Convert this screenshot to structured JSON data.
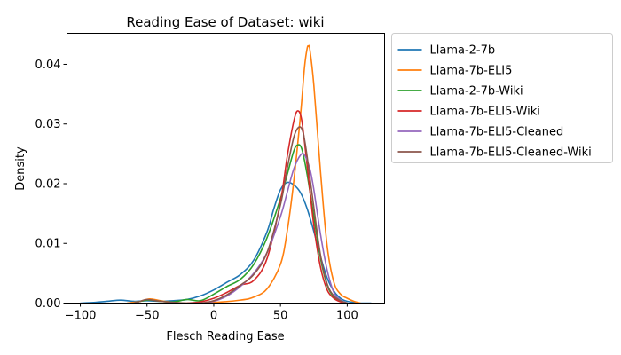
{
  "chart_data": {
    "type": "line",
    "title": "Reading Ease of Dataset: wiki",
    "xlabel": "Flesch Reading Ease",
    "ylabel": "Density",
    "xlim": [
      -110,
      128
    ],
    "ylim": [
      0,
      0.0452
    ],
    "xticks": [
      -100,
      -50,
      0,
      50,
      100
    ],
    "yticks": [
      0.0,
      0.01,
      0.02,
      0.03,
      0.04
    ],
    "ytick_labels": [
      "0.00",
      "0.01",
      "0.02",
      "0.03",
      "0.04"
    ],
    "grid": false,
    "legend_position": "outside-upper-right",
    "series": [
      {
        "name": "Llama-2-7b",
        "color": "#1f77b4",
        "points": [
          [
            -100,
            0
          ],
          [
            -90,
            0.0001
          ],
          [
            -80,
            0.0003
          ],
          [
            -70,
            0.0005
          ],
          [
            -60,
            0.0003
          ],
          [
            -50,
            0.0004
          ],
          [
            -40,
            0.0003
          ],
          [
            -30,
            0.0004
          ],
          [
            -20,
            0.0006
          ],
          [
            -10,
            0.0012
          ],
          [
            0,
            0.0022
          ],
          [
            10,
            0.0035
          ],
          [
            20,
            0.0048
          ],
          [
            30,
            0.0072
          ],
          [
            40,
            0.012
          ],
          [
            45,
            0.0158
          ],
          [
            50,
            0.019
          ],
          [
            55,
            0.0202
          ],
          [
            60,
            0.0198
          ],
          [
            65,
            0.0185
          ],
          [
            70,
            0.0158
          ],
          [
            75,
            0.012
          ],
          [
            80,
            0.0078
          ],
          [
            85,
            0.0042
          ],
          [
            90,
            0.002
          ],
          [
            95,
            0.0008
          ],
          [
            100,
            0.0003
          ],
          [
            110,
            0
          ],
          [
            118,
            0
          ]
        ]
      },
      {
        "name": "Llama-7b-ELI5",
        "color": "#ff7f0e",
        "points": [
          [
            -65,
            0
          ],
          [
            -55,
            0.0003
          ],
          [
            -48,
            0.0007
          ],
          [
            -40,
            0.0004
          ],
          [
            -30,
            0.0001
          ],
          [
            -20,
            0
          ],
          [
            0,
            0.0001
          ],
          [
            20,
            0.0005
          ],
          [
            30,
            0.001
          ],
          [
            40,
            0.0024
          ],
          [
            50,
            0.0065
          ],
          [
            55,
            0.012
          ],
          [
            60,
            0.0205
          ],
          [
            65,
            0.0315
          ],
          [
            68,
            0.0395
          ],
          [
            70,
            0.0427
          ],
          [
            71,
            0.043
          ],
          [
            72,
            0.0425
          ],
          [
            75,
            0.0365
          ],
          [
            80,
            0.022
          ],
          [
            85,
            0.0095
          ],
          [
            90,
            0.0035
          ],
          [
            95,
            0.0015
          ],
          [
            100,
            0.0008
          ],
          [
            105,
            0.0003
          ],
          [
            110,
            0
          ]
        ]
      },
      {
        "name": "Llama-2-7b-Wiki",
        "color": "#2ca02c",
        "points": [
          [
            -60,
            0
          ],
          [
            -50,
            0.0005
          ],
          [
            -40,
            0.0003
          ],
          [
            -30,
            0.0002
          ],
          [
            -20,
            0.0006
          ],
          [
            -10,
            0.0004
          ],
          [
            0,
            0.0015
          ],
          [
            10,
            0.0028
          ],
          [
            20,
            0.004
          ],
          [
            30,
            0.0065
          ],
          [
            40,
            0.011
          ],
          [
            50,
            0.0175
          ],
          [
            55,
            0.0215
          ],
          [
            60,
            0.0255
          ],
          [
            63,
            0.0265
          ],
          [
            66,
            0.0258
          ],
          [
            70,
            0.0215
          ],
          [
            75,
            0.0145
          ],
          [
            80,
            0.0075
          ],
          [
            85,
            0.003
          ],
          [
            90,
            0.001
          ],
          [
            95,
            0.0003
          ],
          [
            100,
            0
          ]
        ]
      },
      {
        "name": "Llama-7b-ELI5-Wiki",
        "color": "#d62728",
        "points": [
          [
            -20,
            0
          ],
          [
            -10,
            0.0002
          ],
          [
            0,
            0.0008
          ],
          [
            10,
            0.0018
          ],
          [
            20,
            0.003
          ],
          [
            30,
            0.0038
          ],
          [
            40,
            0.0075
          ],
          [
            50,
            0.017
          ],
          [
            55,
            0.0245
          ],
          [
            60,
            0.0305
          ],
          [
            63,
            0.0322
          ],
          [
            66,
            0.0305
          ],
          [
            70,
            0.023
          ],
          [
            75,
            0.013
          ],
          [
            80,
            0.006
          ],
          [
            85,
            0.0022
          ],
          [
            90,
            0.0008
          ],
          [
            95,
            0.0002
          ],
          [
            100,
            0
          ]
        ]
      },
      {
        "name": "Llama-7b-ELI5-Cleaned",
        "color": "#9467bd",
        "points": [
          [
            -10,
            0
          ],
          [
            0,
            0.0003
          ],
          [
            10,
            0.0012
          ],
          [
            20,
            0.0028
          ],
          [
            30,
            0.005
          ],
          [
            40,
            0.0085
          ],
          [
            50,
            0.0145
          ],
          [
            55,
            0.0185
          ],
          [
            60,
            0.0225
          ],
          [
            65,
            0.0248
          ],
          [
            68,
            0.0248
          ],
          [
            72,
            0.0225
          ],
          [
            75,
            0.019
          ],
          [
            80,
            0.0115
          ],
          [
            85,
            0.0055
          ],
          [
            90,
            0.0018
          ],
          [
            95,
            0.0005
          ],
          [
            100,
            0
          ]
        ]
      },
      {
        "name": "Llama-7b-ELI5-Cleaned-Wiki",
        "color": "#8c564b",
        "points": [
          [
            -60,
            0
          ],
          [
            -55,
            0.0003
          ],
          [
            -50,
            0.0006
          ],
          [
            -40,
            0.0003
          ],
          [
            -30,
            0.0001
          ],
          [
            -20,
            0
          ],
          [
            -10,
            0
          ],
          [
            0,
            0.0004
          ],
          [
            10,
            0.0014
          ],
          [
            20,
            0.003
          ],
          [
            30,
            0.0048
          ],
          [
            40,
            0.0085
          ],
          [
            50,
            0.0165
          ],
          [
            55,
            0.0225
          ],
          [
            60,
            0.0278
          ],
          [
            64,
            0.0295
          ],
          [
            67,
            0.0285
          ],
          [
            70,
            0.0245
          ],
          [
            75,
            0.016
          ],
          [
            80,
            0.008
          ],
          [
            85,
            0.0032
          ],
          [
            90,
            0.0012
          ],
          [
            95,
            0.0004
          ],
          [
            100,
            0
          ]
        ]
      }
    ]
  }
}
